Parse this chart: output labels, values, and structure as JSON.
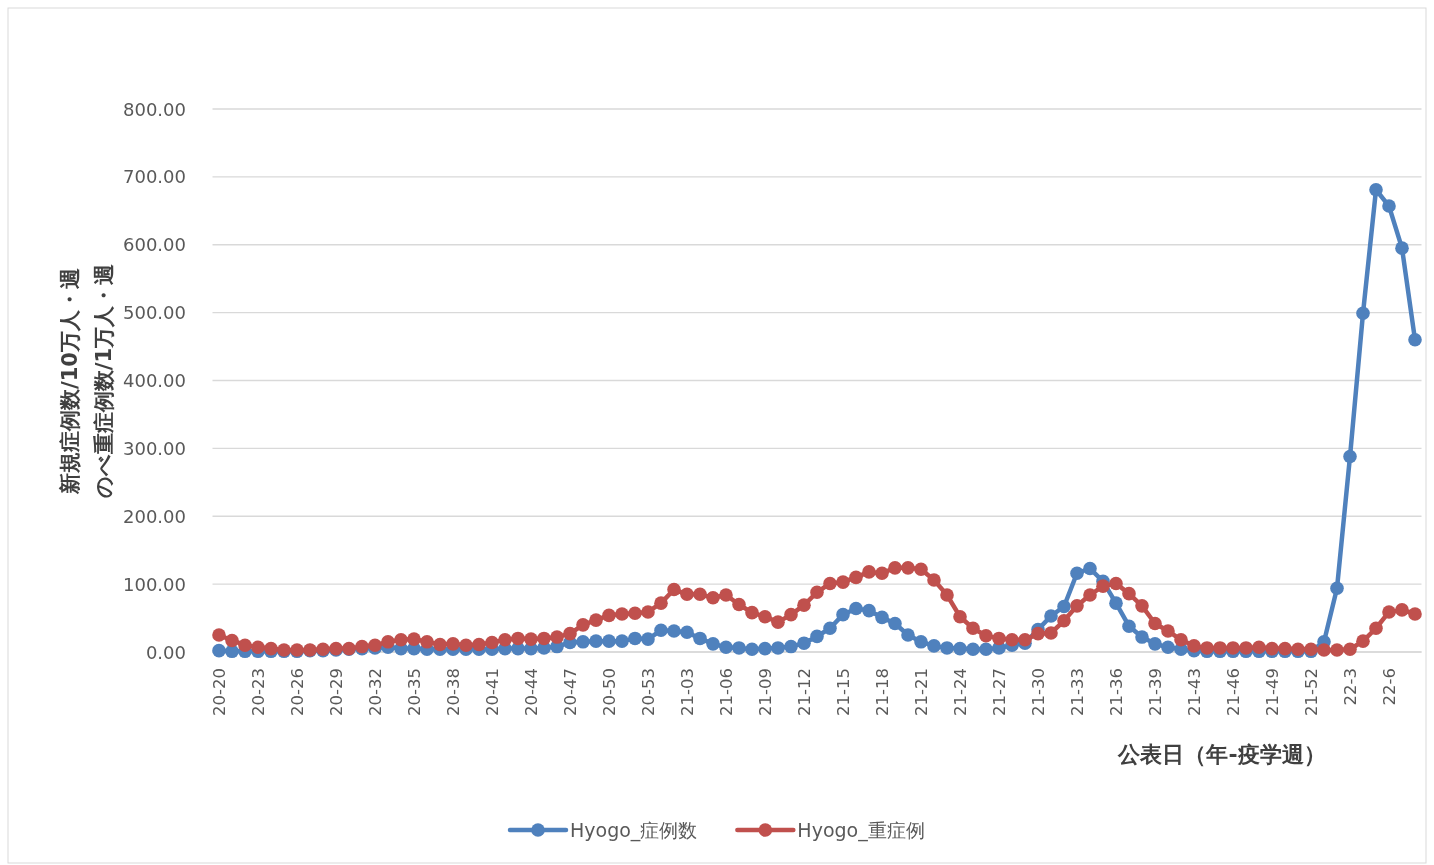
{
  "chart_data": {
    "type": "line",
    "xlabel": "公表日（年-疫学週）",
    "ylabel": "新規症例数/10万人・週のべ重症例数/1万人・週",
    "categories": [
      "20-20",
      null,
      null,
      "20-23",
      null,
      null,
      "20-26",
      null,
      null,
      "20-29",
      null,
      null,
      "20-32",
      null,
      null,
      "20-35",
      null,
      null,
      "20-38",
      null,
      null,
      "20-41",
      null,
      null,
      "20-44",
      null,
      null,
      "20-47",
      null,
      null,
      "20-50",
      null,
      null,
      "20-53",
      null,
      null,
      "21-03",
      null,
      null,
      "21-06",
      null,
      null,
      "21-09",
      null,
      null,
      "21-12",
      null,
      null,
      "21-15",
      null,
      null,
      "21-18",
      null,
      null,
      "21-21",
      null,
      null,
      "21-24",
      null,
      null,
      "21-27",
      null,
      null,
      "21-30",
      null,
      null,
      "21-33",
      null,
      null,
      "21-36",
      null,
      null,
      "21-39",
      null,
      null,
      "21-43",
      null,
      null,
      "21-46",
      null,
      null,
      "21-49",
      null,
      null,
      "21-52",
      null,
      null,
      "22-3",
      null,
      null,
      "22-6",
      null,
      null
    ],
    "series": [
      {
        "name": "Hyogo_症例数",
        "color": "#4f81bd",
        "values": [
          2,
          1,
          1,
          1,
          1,
          1,
          1,
          2,
          2,
          3,
          4,
          5,
          6,
          7,
          5,
          5,
          4,
          4,
          4,
          4,
          4,
          4,
          5,
          5,
          5,
          6,
          8,
          14,
          15,
          16,
          16,
          16,
          20,
          19,
          32,
          31,
          29,
          20,
          12,
          7,
          6,
          4,
          5,
          6,
          8,
          13,
          23,
          35,
          55,
          64,
          61,
          51,
          42,
          25,
          15,
          9,
          6,
          5,
          4,
          4,
          6,
          10,
          13,
          33,
          53,
          67,
          116,
          123,
          104,
          72,
          38,
          22,
          12,
          7,
          4,
          2,
          1,
          1,
          1,
          1,
          1,
          1,
          1,
          1,
          1,
          15,
          94,
          288,
          499,
          681,
          657,
          595,
          460
        ]
      },
      {
        "name": "Hyogo_重症例",
        "color": "#c0504d",
        "values": [
          25,
          17,
          10,
          7,
          5,
          3,
          3,
          3,
          4,
          5,
          5,
          8,
          10,
          15,
          18,
          19,
          15,
          11,
          12,
          10,
          11,
          14,
          18,
          20,
          19,
          20,
          22,
          27,
          40,
          47,
          54,
          56,
          57,
          59,
          72,
          92,
          85,
          85,
          80,
          84,
          70,
          58,
          52,
          44,
          55,
          69,
          88,
          101,
          103,
          110,
          118,
          116,
          124,
          124,
          122,
          106,
          84,
          52,
          35,
          24,
          20,
          18,
          18,
          27,
          28,
          46,
          68,
          84,
          97,
          101,
          86,
          68,
          42,
          31,
          18,
          9,
          6,
          6,
          6,
          6,
          7,
          5,
          5,
          4,
          4,
          3,
          3,
          4,
          16,
          35,
          59,
          62,
          56
        ]
      }
    ],
    "ylim": [
      0,
      800
    ],
    "yticks": [
      {
        "value": 0,
        "label": "0.00"
      },
      {
        "value": 100,
        "label": "100.00"
      },
      {
        "value": 200,
        "label": "200.00"
      },
      {
        "value": 300,
        "label": "300.00"
      },
      {
        "value": 400,
        "label": "400.00"
      },
      {
        "value": 500,
        "label": "500.00"
      },
      {
        "value": 600,
        "label": "600.00"
      },
      {
        "value": 700,
        "label": "700.00"
      },
      {
        "value": 800,
        "label": "800.00"
      }
    ],
    "grid": "y",
    "legend": "bottom",
    "marker": "circle",
    "line_style": "solid"
  }
}
